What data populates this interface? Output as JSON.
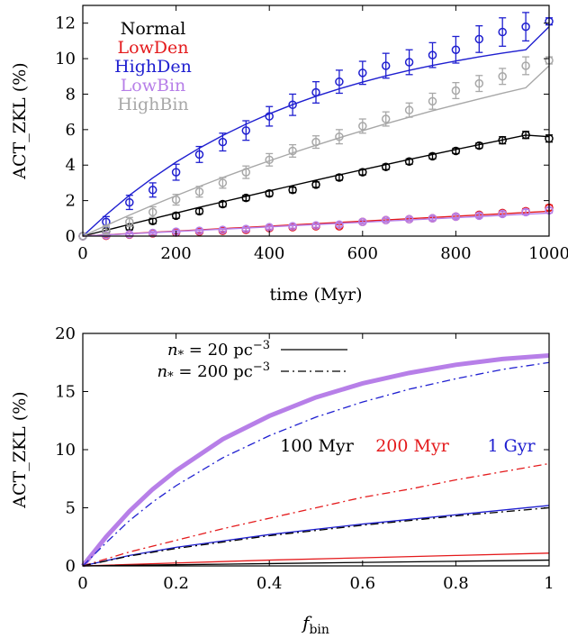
{
  "chart_data": [
    {
      "type": "line",
      "xlabel": "time (Myr)",
      "ylabel": "ACT_ZKL (%)",
      "xlim": [
        0,
        1000
      ],
      "ylim": [
        0,
        13
      ],
      "xticks": [
        0,
        200,
        400,
        600,
        800,
        1000
      ],
      "yticks": [
        0,
        2,
        4,
        6,
        8,
        10,
        12
      ],
      "legend_position": "top-left",
      "series": [
        {
          "name": "Normal",
          "color": "#000000",
          "x": [
            0,
            50,
            100,
            150,
            200,
            250,
            300,
            350,
            400,
            450,
            500,
            550,
            600,
            650,
            700,
            750,
            800,
            850,
            900,
            950,
            1000
          ],
          "values": [
            0,
            0.3,
            0.5,
            0.85,
            1.15,
            1.4,
            1.8,
            2.15,
            2.4,
            2.6,
            2.9,
            3.3,
            3.6,
            3.9,
            4.2,
            4.5,
            4.8,
            5.1,
            5.4,
            5.7,
            5.5
          ],
          "errors": [
            0,
            0.15,
            0.15,
            0.15,
            0.15,
            0.15,
            0.15,
            0.15,
            0.15,
            0.15,
            0.15,
            0.15,
            0.15,
            0.15,
            0.15,
            0.15,
            0.15,
            0.15,
            0.2,
            0.2,
            0.2
          ],
          "fit": [
            0,
            0.33,
            0.66,
            0.98,
            1.3,
            1.62,
            1.93,
            2.24,
            2.55,
            2.85,
            3.15,
            3.45,
            3.74,
            4.03,
            4.32,
            4.6,
            4.88,
            5.15,
            5.42,
            5.69,
            5.6
          ]
        },
        {
          "name": "LowDen",
          "color": "#e41a1c",
          "x": [
            0,
            50,
            100,
            150,
            200,
            250,
            300,
            350,
            400,
            450,
            500,
            550,
            600,
            650,
            700,
            750,
            800,
            850,
            900,
            950,
            1000
          ],
          "values": [
            0,
            0.02,
            0.08,
            0.15,
            0.2,
            0.25,
            0.3,
            0.35,
            0.45,
            0.5,
            0.55,
            0.55,
            0.8,
            0.9,
            0.95,
            1.0,
            1.1,
            1.2,
            1.3,
            1.4,
            1.6
          ],
          "errors": [
            0,
            0.08,
            0.08,
            0.08,
            0.08,
            0.08,
            0.08,
            0.1,
            0.1,
            0.1,
            0.1,
            0.1,
            0.1,
            0.1,
            0.1,
            0.12,
            0.12,
            0.12,
            0.12,
            0.15,
            0.15
          ],
          "fit": [
            0,
            0.07,
            0.14,
            0.21,
            0.28,
            0.35,
            0.42,
            0.49,
            0.56,
            0.63,
            0.7,
            0.77,
            0.84,
            0.91,
            0.98,
            1.05,
            1.12,
            1.19,
            1.26,
            1.33,
            1.4
          ]
        },
        {
          "name": "HighDen",
          "color": "#1f1fd0",
          "x": [
            0,
            50,
            100,
            150,
            200,
            250,
            300,
            350,
            400,
            450,
            500,
            550,
            600,
            650,
            700,
            750,
            800,
            850,
            900,
            950,
            1000
          ],
          "values": [
            0,
            0.8,
            1.9,
            2.6,
            3.6,
            4.6,
            5.3,
            5.95,
            6.75,
            7.4,
            8.1,
            8.7,
            9.2,
            9.6,
            9.8,
            10.2,
            10.5,
            11.1,
            11.5,
            11.8,
            12.1
          ],
          "errors": [
            0,
            0.3,
            0.4,
            0.4,
            0.45,
            0.45,
            0.5,
            0.55,
            0.55,
            0.6,
            0.6,
            0.65,
            0.65,
            0.7,
            0.7,
            0.7,
            0.75,
            0.75,
            0.8,
            0.8,
            0.2
          ],
          "fit": [
            0,
            1.2,
            2.3,
            3.28,
            4.17,
            4.96,
            5.67,
            6.31,
            6.89,
            7.41,
            7.88,
            8.3,
            8.68,
            9.03,
            9.34,
            9.62,
            9.87,
            10.1,
            10.31,
            10.5,
            11.8
          ]
        },
        {
          "name": "LowBin",
          "color": "#b77fe8",
          "x": [
            0,
            50,
            100,
            150,
            200,
            250,
            300,
            350,
            400,
            450,
            500,
            550,
            600,
            650,
            700,
            750,
            800,
            850,
            900,
            950,
            1000
          ],
          "values": [
            0,
            0.05,
            0.1,
            0.18,
            0.25,
            0.3,
            0.35,
            0.4,
            0.5,
            0.55,
            0.6,
            0.65,
            0.8,
            0.9,
            0.95,
            1.0,
            1.1,
            1.15,
            1.25,
            1.35,
            1.45
          ],
          "errors": [
            0,
            0.08,
            0.08,
            0.08,
            0.08,
            0.08,
            0.08,
            0.1,
            0.1,
            0.1,
            0.1,
            0.1,
            0.1,
            0.1,
            0.1,
            0.12,
            0.12,
            0.12,
            0.12,
            0.15,
            0.15
          ],
          "fit": [
            0,
            0.065,
            0.13,
            0.195,
            0.26,
            0.325,
            0.39,
            0.455,
            0.52,
            0.585,
            0.65,
            0.715,
            0.78,
            0.845,
            0.91,
            0.975,
            1.04,
            1.105,
            1.17,
            1.235,
            1.3
          ]
        },
        {
          "name": "HighBin",
          "color": "#a8a8a8",
          "x": [
            0,
            50,
            100,
            150,
            200,
            250,
            300,
            350,
            400,
            450,
            500,
            550,
            600,
            650,
            700,
            750,
            800,
            850,
            900,
            950,
            1000
          ],
          "values": [
            0,
            0.35,
            0.8,
            1.35,
            2.05,
            2.5,
            3.0,
            3.6,
            4.3,
            4.8,
            5.3,
            5.6,
            6.2,
            6.6,
            7.1,
            7.6,
            8.2,
            8.6,
            9.0,
            9.6,
            9.9
          ],
          "errors": [
            0,
            0.25,
            0.25,
            0.3,
            0.3,
            0.3,
            0.3,
            0.35,
            0.35,
            0.35,
            0.35,
            0.4,
            0.4,
            0.4,
            0.4,
            0.45,
            0.45,
            0.45,
            0.45,
            0.5,
            0.2
          ],
          "fit": [
            0,
            0.6,
            1.18,
            1.74,
            2.28,
            2.8,
            3.3,
            3.78,
            4.24,
            4.69,
            5.12,
            5.54,
            5.94,
            6.33,
            6.7,
            7.06,
            7.4,
            7.73,
            8.05,
            8.36,
            9.6
          ]
        }
      ]
    },
    {
      "type": "line",
      "xlabel": "f",
      "xlabel_sub": "bin",
      "ylabel": "ACT_ZKL (%)",
      "xlim": [
        0,
        1
      ],
      "ylim": [
        0,
        20
      ],
      "xticks": [
        "0",
        "0.2",
        "0.4",
        "0.6",
        "0.8",
        "1"
      ],
      "xtick_values": [
        0,
        0.2,
        0.4,
        0.6,
        0.8,
        1
      ],
      "yticks": [
        0,
        5,
        10,
        15,
        20
      ],
      "line_style_legend": [
        {
          "label_var": "n",
          "label_sub": "*",
          "label_rest": " = 20 pc",
          "label_sup": "−3",
          "style": "solid"
        },
        {
          "label_var": "n",
          "label_sub": "*",
          "label_rest": " = 200 pc",
          "label_sup": "−3",
          "style": "dashdot"
        }
      ],
      "time_labels": [
        {
          "text": "100 Myr",
          "color": "#000000"
        },
        {
          "text": "200 Myr",
          "color": "#e41a1c"
        },
        {
          "text": "1 Gyr",
          "color": "#1f1fd0"
        }
      ],
      "series": [
        {
          "color": "#b77fe8",
          "style": "thick",
          "x": [
            0,
            0.05,
            0.1,
            0.15,
            0.2,
            0.3,
            0.4,
            0.5,
            0.6,
            0.7,
            0.8,
            0.9,
            1.0
          ],
          "values": [
            0,
            2.5,
            4.7,
            6.6,
            8.2,
            10.9,
            12.9,
            14.5,
            15.7,
            16.6,
            17.3,
            17.8,
            18.1
          ]
        },
        {
          "color": "#1f1fd0",
          "style": "dashdot",
          "x": [
            0,
            0.05,
            0.1,
            0.15,
            0.2,
            0.3,
            0.4,
            0.5,
            0.6,
            0.7,
            0.8,
            0.9,
            1.0
          ],
          "values": [
            0,
            2.0,
            3.9,
            5.5,
            6.9,
            9.3,
            11.2,
            12.8,
            14.1,
            15.2,
            16.1,
            16.9,
            17.5
          ]
        },
        {
          "color": "#e41a1c",
          "style": "dashdot",
          "x": [
            0,
            0.1,
            0.2,
            0.3,
            0.4,
            0.5,
            0.6,
            0.7,
            0.8,
            0.9,
            1.0
          ],
          "values": [
            0,
            1.2,
            2.2,
            3.2,
            4.1,
            5.0,
            5.9,
            6.6,
            7.4,
            8.1,
            8.8
          ]
        },
        {
          "color": "#1f1fd0",
          "style": "solid",
          "x": [
            0,
            0.1,
            0.2,
            0.4,
            0.6,
            0.8,
            1.0
          ],
          "values": [
            0,
            0.9,
            1.6,
            2.7,
            3.6,
            4.4,
            5.2
          ]
        },
        {
          "color": "#000000",
          "style": "dashdot",
          "x": [
            0,
            0.1,
            0.2,
            0.4,
            0.6,
            0.8,
            1.0
          ],
          "values": [
            0,
            0.85,
            1.5,
            2.6,
            3.5,
            4.3,
            5.0
          ]
        },
        {
          "color": "#e41a1c",
          "style": "solid",
          "x": [
            0,
            0.2,
            0.4,
            0.6,
            0.8,
            1.0
          ],
          "values": [
            0,
            0.25,
            0.5,
            0.7,
            0.9,
            1.1
          ]
        },
        {
          "color": "#000000",
          "style": "solid",
          "x": [
            0,
            0.2,
            0.4,
            0.6,
            0.8,
            1.0
          ],
          "values": [
            0,
            0.1,
            0.2,
            0.3,
            0.4,
            0.5
          ]
        }
      ]
    }
  ]
}
